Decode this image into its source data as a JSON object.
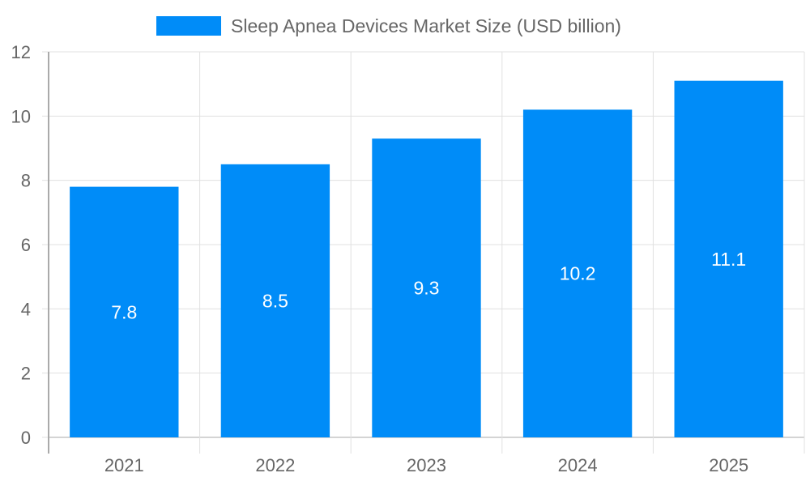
{
  "chart_data": {
    "type": "bar",
    "title": "",
    "xlabel": "",
    "ylabel": "",
    "categories": [
      "2021",
      "2022",
      "2023",
      "2024",
      "2025"
    ],
    "series": [
      {
        "name": "Sleep Apnea Devices Market  Size (USD billion)",
        "values": [
          7.8,
          8.5,
          9.3,
          10.2,
          11.1
        ]
      }
    ],
    "ylim": [
      0,
      12
    ],
    "yticks": [
      0,
      2,
      4,
      6,
      8,
      10,
      12
    ],
    "grid": true,
    "legend": "top-center",
    "data_labels": [
      "7.8",
      "8.5",
      "9.3",
      "10.2",
      "11.1"
    ],
    "colors": {
      "bar": "#008cf8",
      "grid": "#e0e0e0",
      "axis": "#aaaaaa",
      "text": "#666666",
      "label": "#ffffff"
    }
  }
}
